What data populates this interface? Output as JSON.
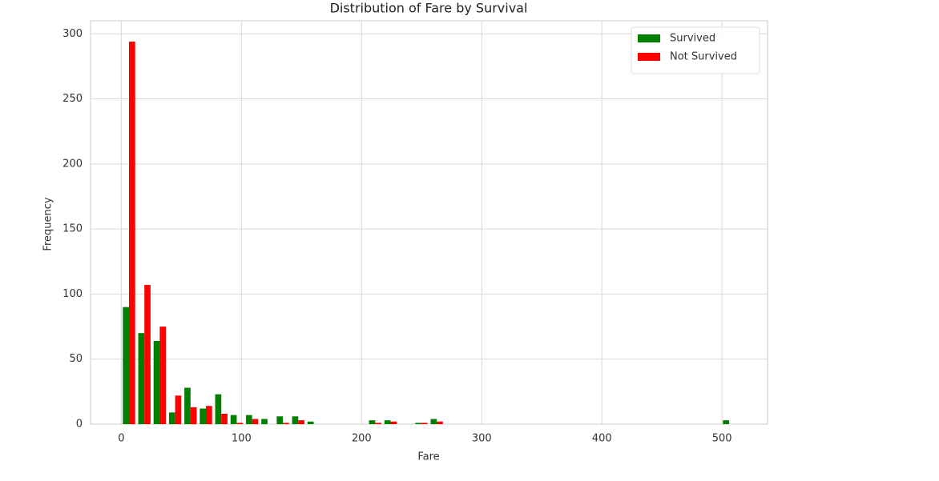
{
  "chart_data": {
    "type": "histogram",
    "title": "Distribution of Fare by Survival",
    "x_label": "Fare",
    "y_label": "Frequency",
    "bins": [
      0,
      12.81,
      25.62,
      38.42,
      51.23,
      64.04,
      76.85,
      89.66,
      102.47,
      115.27,
      128.08,
      140.89,
      153.7,
      166.51,
      179.32,
      192.12,
      204.93,
      217.74,
      230.55,
      243.36,
      256.16,
      268.97,
      281.78,
      294.59,
      307.4,
      320.21,
      333.01,
      345.82,
      358.63,
      371.44,
      384.25,
      397.06,
      409.86,
      422.67,
      435.48,
      448.29,
      461.1,
      473.91,
      486.71,
      499.52,
      512.33
    ],
    "series": [
      {
        "name": "Survived",
        "color": "#008000",
        "values": [
          90,
          70,
          64,
          9,
          28,
          12,
          23,
          7,
          7,
          4,
          6,
          6,
          2,
          0,
          0,
          0,
          3,
          3,
          0,
          1,
          4,
          0,
          0,
          0,
          0,
          0,
          0,
          0,
          0,
          0,
          0,
          0,
          0,
          0,
          0,
          0,
          0,
          0,
          0,
          3
        ]
      },
      {
        "name": "Not Survived",
        "color": "#ff0000",
        "values": [
          294,
          107,
          75,
          22,
          13,
          14,
          8,
          1,
          4,
          0,
          1,
          3,
          0,
          0,
          0,
          0,
          1,
          2,
          0,
          1,
          2,
          0,
          0,
          0,
          0,
          0,
          0,
          0,
          0,
          0,
          0,
          0,
          0,
          0,
          0,
          0,
          0,
          0,
          0,
          0
        ]
      }
    ],
    "xlim": [
      -25.6,
      537.9
    ],
    "ylim": [
      0,
      310
    ],
    "xticks": [
      0,
      100,
      200,
      300,
      400,
      500
    ],
    "yticks": [
      0,
      50,
      100,
      150,
      200,
      250,
      300
    ],
    "grid": true,
    "legend": "upper right"
  }
}
